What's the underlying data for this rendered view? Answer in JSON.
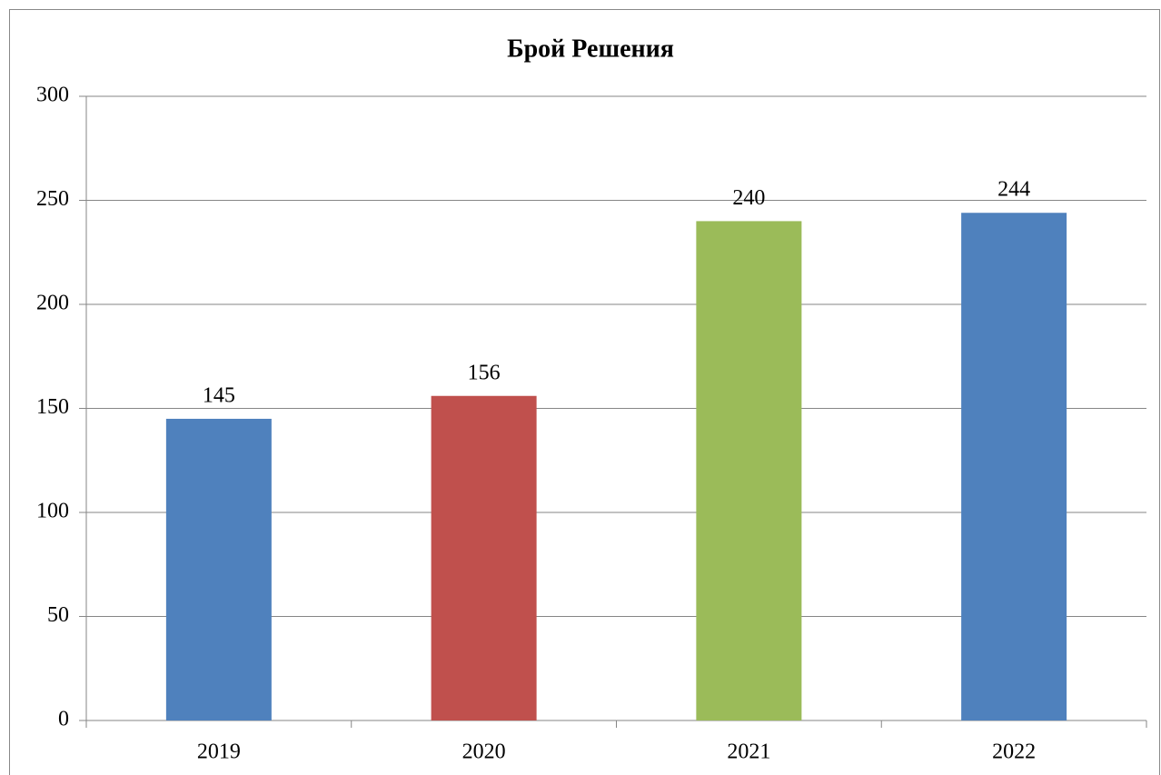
{
  "chart_data": {
    "type": "bar",
    "title": "Брой Решения",
    "categories": [
      "2019",
      "2020",
      "2021",
      "2022"
    ],
    "values": [
      145,
      156,
      240,
      244
    ],
    "colors": [
      "#4f81bd",
      "#c0504d",
      "#9bbb59",
      "#4f81bd"
    ],
    "ylim": [
      0,
      300
    ],
    "yticks": [
      0,
      50,
      100,
      150,
      200,
      250,
      300
    ],
    "grid": true
  }
}
